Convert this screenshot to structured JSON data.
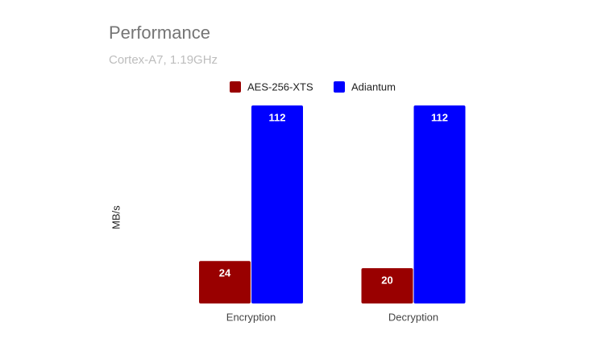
{
  "chart_data": {
    "type": "bar",
    "title": "Performance",
    "subtitle": "Cortex-A7, 1.19GHz",
    "y_label": "MB/s",
    "categories": [
      "Encryption",
      "Decryption"
    ],
    "series": [
      {
        "name": "AES-256-XTS",
        "color": "#990000",
        "values": [
          24,
          20
        ]
      },
      {
        "name": "Adiantum",
        "color": "#0000ff",
        "values": [
          112,
          112
        ]
      }
    ],
    "ylim": [
      0,
      112
    ],
    "legend": "top",
    "grid": false
  }
}
